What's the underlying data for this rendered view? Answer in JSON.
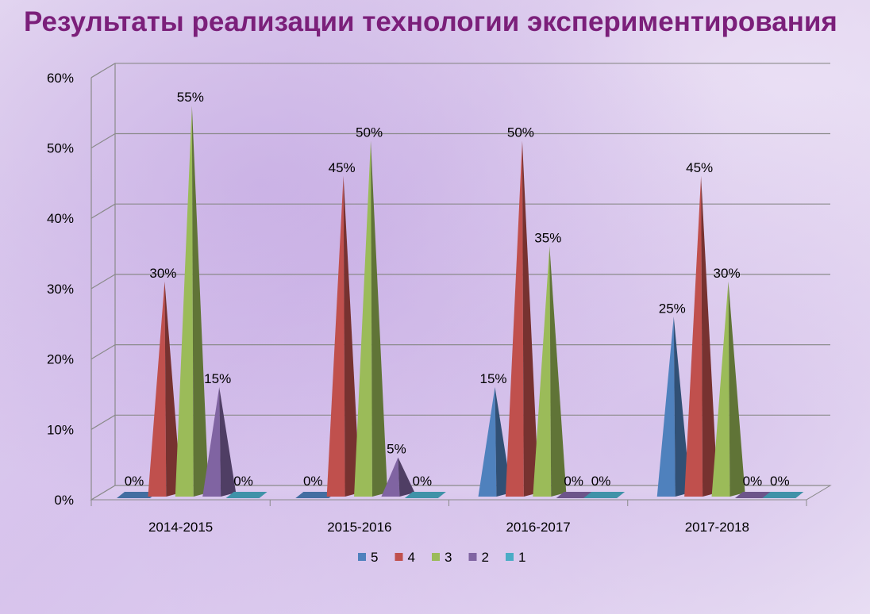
{
  "slide": {
    "title": "Результаты реализации технологии экспериментирования"
  },
  "chart_data": {
    "type": "bar",
    "style": "3d-cone",
    "title": "Результаты реализации технологии экспериментирования",
    "categories": [
      "2014-2015",
      "2015-2016",
      "2016-2017",
      "2017-2018"
    ],
    "series": [
      {
        "name": "5",
        "color": "#4f81bd",
        "values": [
          0,
          0,
          15,
          25
        ]
      },
      {
        "name": "4",
        "color": "#c0504d",
        "values": [
          30,
          45,
          50,
          45
        ]
      },
      {
        "name": "3",
        "color": "#9bbb59",
        "values": [
          55,
          50,
          35,
          30
        ]
      },
      {
        "name": "2",
        "color": "#8064a2",
        "values": [
          15,
          5,
          0,
          0
        ]
      },
      {
        "name": "1",
        "color": "#4bacc6",
        "values": [
          0,
          0,
          0,
          0
        ]
      }
    ],
    "y_ticks": [
      "0%",
      "10%",
      "20%",
      "30%",
      "40%",
      "50%",
      "60%"
    ],
    "ylim": [
      0,
      60
    ],
    "value_suffix": "%",
    "grid": true,
    "legend": "bottom"
  }
}
